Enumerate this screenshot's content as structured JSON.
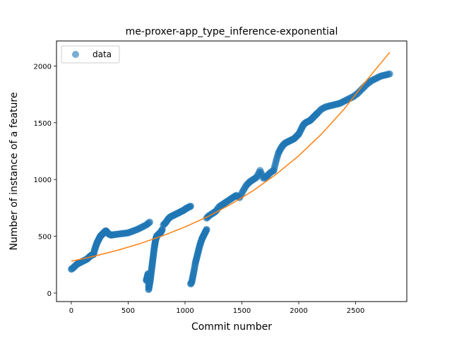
{
  "chart_data": {
    "type": "scatter",
    "title": "me-proxer-app_type_inference-exponential",
    "xlabel": "Commit number",
    "ylabel": "Number of instance of a feature",
    "xlim": [
      -130,
      2950
    ],
    "ylim": [
      -75,
      2220
    ],
    "xticks": [
      0,
      500,
      1000,
      1500,
      2000,
      2500
    ],
    "yticks": [
      0,
      500,
      1000,
      1500,
      2000
    ],
    "grid": false,
    "legend_position": "top-left",
    "series": [
      {
        "name": "data",
        "kind": "scatter",
        "color": "#1f77b4",
        "opacity": 0.6,
        "segments": [
          {
            "x": [
              0,
              20,
              40,
              60,
              80,
              100,
              120,
              140,
              160,
              180,
              195
            ],
            "y": [
              210,
              225,
              245,
              260,
              270,
              280,
              290,
              300,
              320,
              335,
              340
            ]
          },
          {
            "x": [
              195,
              205,
              215,
              225,
              235,
              245,
              255,
              265,
              275,
              285,
              295,
              305,
              315,
              330,
              350,
              380,
              420,
              460,
              500,
              540,
              580,
              620,
              660,
              690
            ],
            "y": [
              340,
              380,
              410,
              440,
              460,
              480,
              500,
              510,
              520,
              530,
              540,
              548,
              535,
              520,
              510,
              515,
              520,
              525,
              530,
              545,
              560,
              580,
              600,
              625
            ]
          },
          {
            "x": [
              660,
              665,
              670,
              675,
              680,
              685,
              690,
              695,
              700,
              705,
              710,
              715,
              720,
              725,
              730,
              735,
              740,
              745,
              750,
              760,
              770,
              780,
              790,
              800
            ],
            "y": [
              110,
              130,
              150,
              170,
              30,
              60,
              90,
              120,
              160,
              200,
              240,
              280,
              320,
              360,
              400,
              430,
              460,
              480,
              500,
              510,
              520,
              530,
              540,
              560
            ]
          },
          {
            "x": [
              810,
              830,
              850,
              870,
              890,
              910,
              930,
              950,
              970,
              990,
              1010,
              1030,
              1050
            ],
            "y": [
              600,
              620,
              650,
              670,
              680,
              690,
              700,
              710,
              720,
              730,
              745,
              755,
              765
            ]
          },
          {
            "x": [
              1050,
              1060,
              1070,
              1080,
              1090,
              1100,
              1110,
              1120,
              1130,
              1140,
              1150,
              1160,
              1170,
              1180,
              1190
            ],
            "y": [
              80,
              100,
              150,
              200,
              260,
              300,
              340,
              380,
              420,
              450,
              480,
              500,
              520,
              540,
              560
            ]
          },
          {
            "x": [
              1190,
              1210,
              1240,
              1270,
              1300,
              1330,
              1360,
              1390,
              1420,
              1450,
              1480,
              1510,
              1540,
              1570,
              1600,
              1630,
              1660,
              1690,
              1720,
              1750,
              1780
            ],
            "y": [
              660,
              680,
              700,
              720,
              760,
              780,
              800,
              820,
              840,
              860,
              840,
              900,
              950,
              980,
              1000,
              1020,
              1080,
              1010,
              1030,
              1060,
              1080
            ]
          },
          {
            "x": [
              1780,
              1800,
              1820,
              1840,
              1860,
              1880,
              1900,
              1920,
              1940,
              1960,
              1980,
              2000,
              2020,
              2040,
              2060,
              2080,
              2100,
              2120,
              2140,
              2160
            ],
            "y": [
              1080,
              1160,
              1230,
              1270,
              1300,
              1320,
              1330,
              1340,
              1350,
              1360,
              1380,
              1400,
              1440,
              1480,
              1500,
              1510,
              1520,
              1540,
              1560,
              1580
            ]
          },
          {
            "x": [
              2160,
              2200,
              2240,
              2280,
              2320,
              2360,
              2400,
              2440,
              2480,
              2520,
              2560,
              2600,
              2640,
              2680,
              2720,
              2760,
              2800
            ],
            "y": [
              1580,
              1620,
              1640,
              1650,
              1660,
              1670,
              1690,
              1710,
              1730,
              1760,
              1800,
              1840,
              1870,
              1890,
              1910,
              1920,
              1930
            ]
          }
        ]
      },
      {
        "name": "",
        "kind": "line",
        "color": "#ff7f0e",
        "x": [
          0,
          200,
          400,
          600,
          800,
          1000,
          1200,
          1400,
          1600,
          1800,
          2000,
          2200,
          2400,
          2600,
          2800
        ],
        "y": [
          280,
          324,
          375,
          434,
          503,
          582,
          673,
          780,
          902,
          1045,
          1209,
          1400,
          1621,
          1877,
          2120
        ]
      }
    ],
    "legend": [
      {
        "label": "data",
        "marker": "circle",
        "color": "#1f77b4"
      }
    ]
  }
}
